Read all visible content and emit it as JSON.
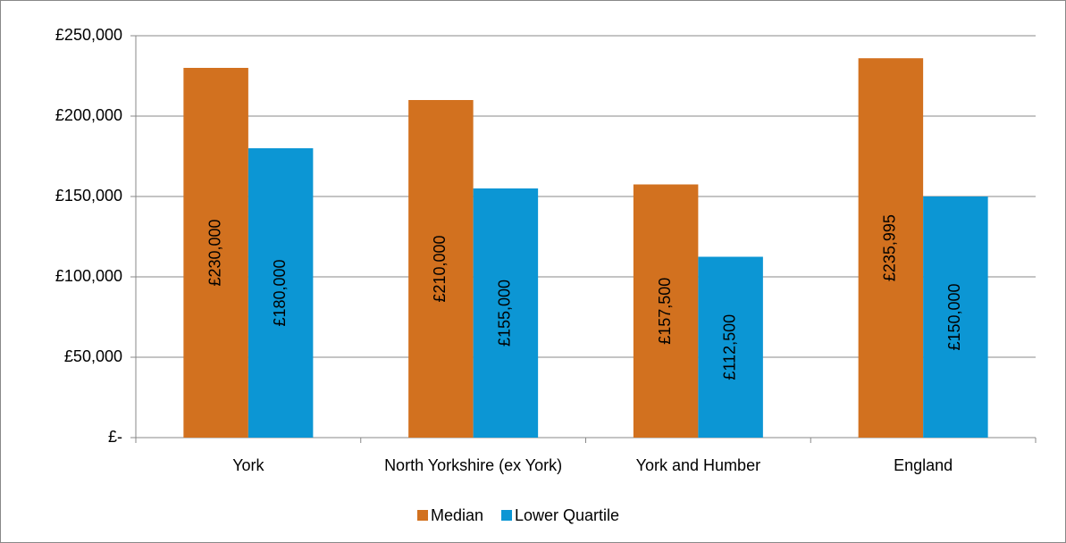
{
  "chart_data": {
    "type": "bar",
    "categories": [
      "York",
      "North Yorkshire (ex York)",
      "York and Humber",
      "England"
    ],
    "series": [
      {
        "name": "Median",
        "color": "#d2711f",
        "values": [
          230000,
          210000,
          157500,
          235995
        ],
        "value_labels": [
          "£230,000",
          "£210,000",
          "£157,500",
          "£235,995"
        ]
      },
      {
        "name": "Lower Quartile",
        "color": "#0c96d4",
        "values": [
          180000,
          155000,
          112500,
          150000
        ],
        "value_labels": [
          "£180,000",
          "£155,000",
          "£112,500",
          "£150,000"
        ]
      }
    ],
    "ylim": [
      0,
      250000
    ],
    "yticks": [
      {
        "value": 0,
        "label": "£-"
      },
      {
        "value": 50000,
        "label": "£50,000"
      },
      {
        "value": 100000,
        "label": "£100,000"
      },
      {
        "value": 150000,
        "label": "£150,000"
      },
      {
        "value": 200000,
        "label": "£200,000"
      },
      {
        "value": 250000,
        "label": "£250,000"
      }
    ],
    "grid": true,
    "legend": "bottom"
  }
}
